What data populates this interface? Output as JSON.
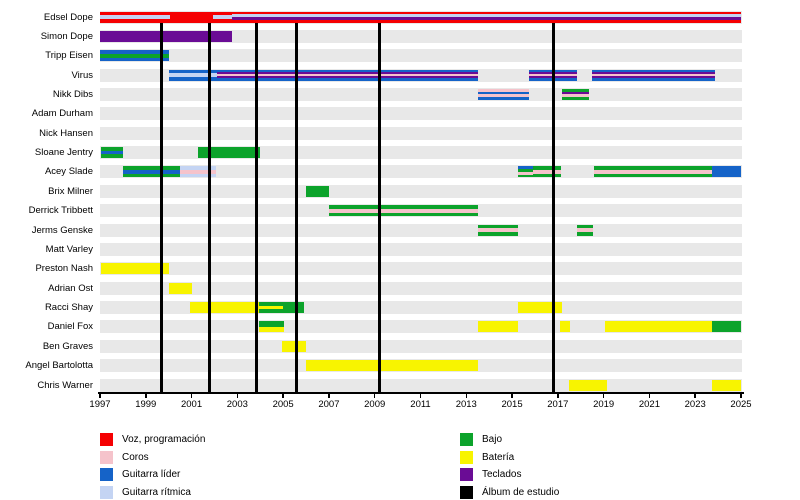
{
  "chart_data": {
    "type": "timeline",
    "title": "",
    "x_axis": {
      "start": 1997,
      "end": 2025,
      "ticks": [
        1997,
        1999,
        2001,
        2003,
        2005,
        2007,
        2009,
        2011,
        2013,
        2015,
        2017,
        2019,
        2021,
        2023,
        2025
      ]
    },
    "palette": {
      "red": "#f50002",
      "pink": "#f5c3cb",
      "blue": "#1563c8",
      "lightblue": "#c4d4f3",
      "green": "#0ca32b",
      "yellow": "#f8f400",
      "purple": "#6a0c95",
      "black": "#000000"
    },
    "album_lines_years": [
      1999.7,
      2001.8,
      2003.85,
      2005.6,
      2009.2,
      2016.82
    ],
    "members": [
      {
        "name": "Edsel Dope",
        "segments": [
          {
            "from": 1997,
            "to": 2000.05,
            "stripes": [
              "red",
              "lightblue",
              "red"
            ]
          },
          {
            "from": 2000.05,
            "to": 2001.95,
            "stripes": [
              "red"
            ]
          },
          {
            "from": 2001.95,
            "to": 2002.78,
            "stripes": [
              "red",
              "lightblue",
              "red"
            ]
          },
          {
            "from": 2002.78,
            "to": 2025,
            "stripes": [
              "red",
              "lightblue",
              "purple",
              "red"
            ]
          }
        ]
      },
      {
        "name": "Simon Dope",
        "segments": [
          {
            "from": 1997,
            "to": 2002.78,
            "stripes": [
              "purple"
            ]
          }
        ]
      },
      {
        "name": "Tripp Eisen",
        "segments": [
          {
            "from": 1997,
            "to": 2000.0,
            "stripes": [
              "blue",
              "green",
              "blue"
            ]
          }
        ]
      },
      {
        "name": "Virus",
        "segments": [
          {
            "from": 2000.0,
            "to": 2002.1,
            "stripes": [
              "blue",
              "lightblue",
              "blue"
            ]
          },
          {
            "from": 2002.1,
            "to": 2013.5,
            "stripes": [
              "blue",
              "purple",
              "pink",
              "purple",
              "blue"
            ]
          },
          {
            "from": 2015.75,
            "to": 2017.85,
            "stripes": [
              "blue",
              "purple",
              "pink",
              "purple",
              "blue"
            ]
          },
          {
            "from": 2018.5,
            "to": 2023.85,
            "stripes": [
              "blue",
              "purple",
              "pink",
              "purple",
              "blue"
            ]
          }
        ]
      },
      {
        "name": "Nikk Dibs",
        "segments": [
          {
            "from": 2013.5,
            "to": 2015.75,
            "stripes": [
              "pink",
              "blue",
              "pink",
              "blue"
            ]
          },
          {
            "from": 2017.2,
            "to": 2018.35,
            "stripes": [
              "green",
              "purple",
              "pink",
              "green"
            ]
          }
        ]
      },
      {
        "name": "Adam Durham",
        "segments": []
      },
      {
        "name": "Nick Hansen",
        "segments": []
      },
      {
        "name": "Sloane Jentry",
        "segments": [
          {
            "from": 1997.05,
            "to": 1998.0,
            "stripes": [
              "green",
              "blue",
              "green"
            ]
          },
          {
            "from": 2001.3,
            "to": 2004.0,
            "stripes": [
              "green"
            ]
          }
        ]
      },
      {
        "name": "Acey Slade",
        "segments": [
          {
            "from": 1998.0,
            "to": 2000.5,
            "stripes": [
              "green",
              "blue",
              "green"
            ]
          },
          {
            "from": 2000.5,
            "to": 2002.05,
            "stripes": [
              "lightblue",
              "pink",
              "lightblue"
            ]
          },
          {
            "from": 2015.25,
            "to": 2015.9,
            "stripes": [
              "blue",
              "green",
              "pink",
              "green"
            ]
          },
          {
            "from": 2015.9,
            "to": 2017.15,
            "stripes": [
              "green",
              "pink",
              "green"
            ]
          },
          {
            "from": 2018.6,
            "to": 2023.75,
            "stripes": [
              "green",
              "pink",
              "green"
            ]
          },
          {
            "from": 2023.75,
            "to": 2025,
            "stripes": [
              "blue"
            ]
          }
        ]
      },
      {
        "name": "Brix Milner",
        "segments": [
          {
            "from": 2006.0,
            "to": 2007.0,
            "stripes": [
              "green"
            ]
          }
        ]
      },
      {
        "name": "Derrick Tribbett",
        "segments": [
          {
            "from": 2007.0,
            "to": 2013.5,
            "stripes": [
              "green",
              "pink",
              "green"
            ]
          }
        ]
      },
      {
        "name": "Jerms Genske",
        "segments": [
          {
            "from": 2013.5,
            "to": 2015.25,
            "stripes": [
              "green",
              "pink",
              "green"
            ]
          },
          {
            "from": 2017.85,
            "to": 2018.55,
            "stripes": [
              "green",
              "pink",
              "green"
            ]
          }
        ]
      },
      {
        "name": "Matt Varley",
        "segments": []
      },
      {
        "name": "Preston Nash",
        "segments": [
          {
            "from": 1997.05,
            "to": 2000.0,
            "stripes": [
              "yellow"
            ]
          }
        ]
      },
      {
        "name": "Adrian Ost",
        "segments": [
          {
            "from": 2000.0,
            "to": 2001.0,
            "stripes": [
              "yellow"
            ]
          }
        ]
      },
      {
        "name": "Racci Shay",
        "segments": [
          {
            "from": 2000.95,
            "to": 2003.95,
            "stripes": [
              "yellow"
            ]
          },
          {
            "from": 2003.95,
            "to": 2005.0,
            "stripes": [
              "green",
              "yellow",
              "green"
            ]
          },
          {
            "from": 2005.0,
            "to": 2005.9,
            "stripes": [
              "green"
            ]
          },
          {
            "from": 2015.25,
            "to": 2017.2,
            "stripes": [
              "yellow"
            ]
          }
        ]
      },
      {
        "name": "Daniel Fox",
        "segments": [
          {
            "from": 2003.95,
            "to": 2005.05,
            "stripes": [
              "green",
              "yellow"
            ]
          },
          {
            "from": 2013.5,
            "to": 2015.25,
            "stripes": [
              "yellow"
            ]
          },
          {
            "from": 2017.1,
            "to": 2017.55,
            "stripes": [
              "yellow"
            ]
          },
          {
            "from": 2019.05,
            "to": 2023.75,
            "stripes": [
              "yellow"
            ]
          },
          {
            "from": 2023.75,
            "to": 2025,
            "stripes": [
              "green"
            ]
          }
        ]
      },
      {
        "name": "Ben Graves",
        "segments": [
          {
            "from": 2004.95,
            "to": 2006.0,
            "stripes": [
              "yellow"
            ]
          }
        ]
      },
      {
        "name": "Angel Bartolotta",
        "segments": [
          {
            "from": 2006.0,
            "to": 2013.5,
            "stripes": [
              "yellow"
            ]
          }
        ]
      },
      {
        "name": "Chris Warner",
        "segments": [
          {
            "from": 2017.5,
            "to": 2019.15,
            "stripes": [
              "yellow"
            ]
          },
          {
            "from": 2023.75,
            "to": 2025,
            "stripes": [
              "yellow"
            ]
          }
        ]
      }
    ],
    "legend": {
      "columns": [
        [
          {
            "label": "Voz, programación",
            "color": "red"
          },
          {
            "label": "Coros",
            "color": "pink"
          },
          {
            "label": "Guitarra líder",
            "color": "blue"
          },
          {
            "label": "Guitarra rítmica",
            "color": "lightblue"
          }
        ],
        [
          {
            "label": "Bajo",
            "color": "green"
          },
          {
            "label": "Batería",
            "color": "yellow"
          },
          {
            "label": "Teclados",
            "color": "purple"
          },
          {
            "label": "Álbum de estudio",
            "color": "black"
          }
        ]
      ]
    }
  }
}
